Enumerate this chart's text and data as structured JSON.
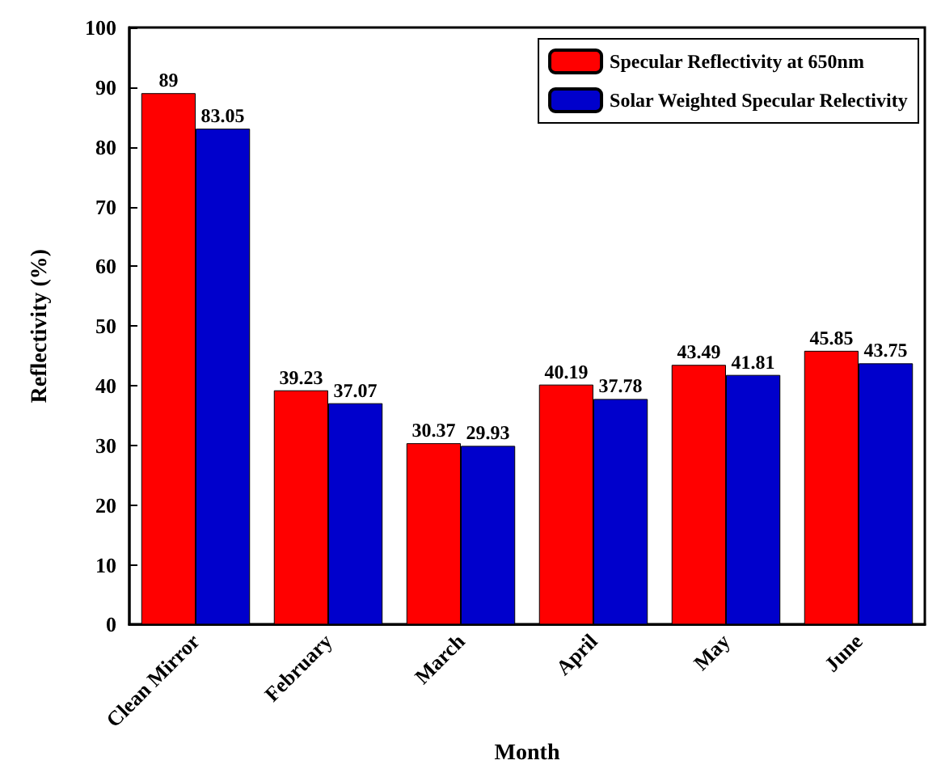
{
  "chart_data": {
    "type": "bar",
    "xlabel": "Month",
    "ylabel": "Reflectivity (%)",
    "categories": [
      "Clean Mirror",
      "February",
      "March",
      "April",
      "May",
      "June"
    ],
    "series": [
      {
        "name": "Specular Reflectivity at 650nm",
        "color": "#ff0000",
        "values": [
          89,
          39.23,
          30.37,
          40.19,
          43.49,
          45.85
        ]
      },
      {
        "name": "Solar Weighted Specular Relectivity",
        "color": "#0000cc",
        "values": [
          83.05,
          37.07,
          29.93,
          37.78,
          41.81,
          43.75
        ]
      }
    ],
    "ylim": [
      0,
      100
    ],
    "yticks": [
      0,
      10,
      20,
      30,
      40,
      50,
      60,
      70,
      80,
      90,
      100
    ],
    "grid": false,
    "legend": "top right",
    "data_labels": true
  }
}
